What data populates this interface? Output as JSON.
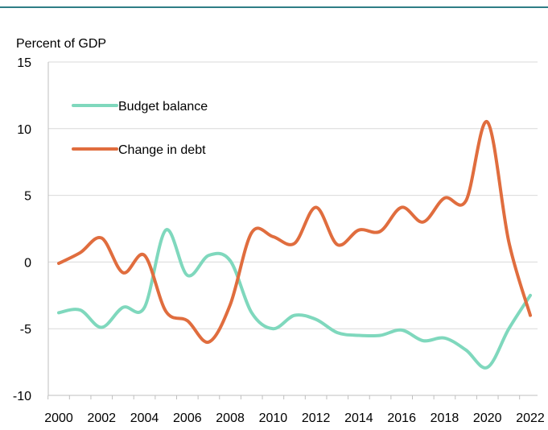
{
  "chart_data": {
    "type": "line",
    "ylabel": "Percent of GDP",
    "xlabel": "",
    "ylim": [
      -10,
      15
    ],
    "yticks": [
      15,
      10,
      5,
      0,
      -5,
      -10
    ],
    "xlim": [
      2000,
      2022
    ],
    "xticks": [
      2000,
      2002,
      2004,
      2006,
      2008,
      2010,
      2012,
      2014,
      2016,
      2018,
      2020,
      2022
    ],
    "grid": true,
    "legend_position": "top-left",
    "x": [
      2000,
      2001,
      2002,
      2003,
      2004,
      2005,
      2006,
      2007,
      2008,
      2009,
      2010,
      2011,
      2012,
      2013,
      2014,
      2015,
      2016,
      2017,
      2018,
      2019,
      2020,
      2021,
      2022
    ],
    "series": [
      {
        "name": "Budget balance",
        "color": "#7fd8bd",
        "values": [
          -3.8,
          -3.6,
          -4.9,
          -3.4,
          -3.4,
          2.4,
          -1.0,
          0.5,
          0.1,
          -3.8,
          -5.0,
          -4.0,
          -4.3,
          -5.3,
          -5.5,
          -5.5,
          -5.1,
          -5.9,
          -5.7,
          -6.6,
          -7.9,
          -5.0,
          -2.5
        ]
      },
      {
        "name": "Change in debt",
        "color": "#e06d3e",
        "values": [
          -0.1,
          0.7,
          1.8,
          -0.8,
          0.5,
          -3.7,
          -4.4,
          -6.0,
          -3.2,
          2.2,
          1.9,
          1.4,
          4.1,
          1.3,
          2.4,
          2.3,
          4.1,
          3.0,
          4.8,
          4.6,
          10.5,
          1.5,
          -4.0
        ]
      }
    ]
  }
}
